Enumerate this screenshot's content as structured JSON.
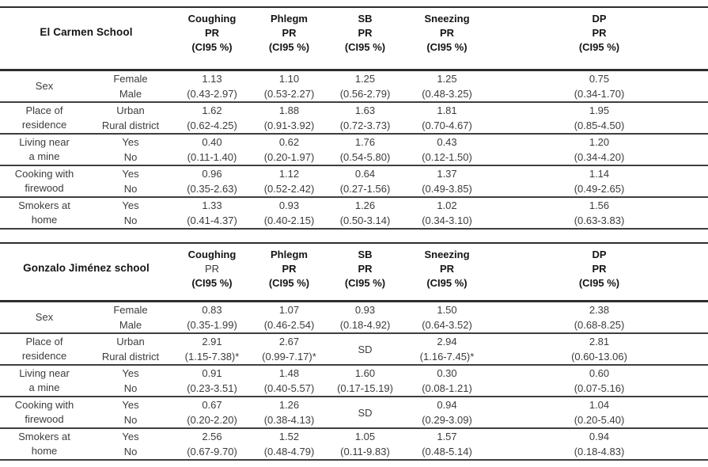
{
  "colors": {
    "background": "#ffffff",
    "rule_line": "#3f3f3f",
    "strong_rule_line": "#2e2e2e",
    "body_text": "#3c3c3c",
    "heading_text": "#151515"
  },
  "tables": [
    {
      "school": "El Carmen School",
      "columns": [
        {
          "symptom": "Coughing",
          "pr": "PR",
          "ci": "(CI95 %)",
          "pr_bold": true
        },
        {
          "symptom": "Phlegm",
          "pr": "PR",
          "ci": "(CI95 %)",
          "pr_bold": true
        },
        {
          "symptom": "SB",
          "pr": "PR",
          "ci": "(CI95 %)",
          "pr_bold": true
        },
        {
          "symptom": "Sneezing",
          "pr": "PR",
          "ci": "(CI95 %)",
          "pr_bold": true
        },
        {
          "symptom": "DP",
          "pr": "PR",
          "ci": "(CI95 %)",
          "pr_bold": true
        }
      ],
      "rows": [
        {
          "attribute": [
            "Sex"
          ],
          "categories": [
            "Female",
            "Male"
          ],
          "cells": [
            [
              "1.13",
              "(0.43-2.97)"
            ],
            [
              "1.10",
              "(0.53-2.27)"
            ],
            [
              "1.25",
              "(0.56-2.79)"
            ],
            [
              "1.25",
              "(0.48-3.25)"
            ],
            [
              "0.75",
              "(0.34-1.70)"
            ]
          ]
        },
        {
          "attribute": [
            "Place of",
            "residence"
          ],
          "categories": [
            "Urban",
            "Rural district"
          ],
          "cells": [
            [
              "1.62",
              "(0.62-4.25)"
            ],
            [
              "1.88",
              "(0.91-3.92)"
            ],
            [
              "1.63",
              "(0.72-3.73)"
            ],
            [
              "1.81",
              "(0.70-4.67)"
            ],
            [
              "1.95",
              "(0.85-4.50)"
            ]
          ]
        },
        {
          "attribute": [
            "Living near",
            "a mine"
          ],
          "categories": [
            "Yes",
            "No"
          ],
          "cells": [
            [
              "0.40",
              "(0.11-1.40)"
            ],
            [
              "0.62",
              "(0.20-1.97)"
            ],
            [
              "1.76",
              "(0.54-5.80)"
            ],
            [
              "0.43",
              "(0.12-1.50)"
            ],
            [
              "1.20",
              "(0.34-4.20)"
            ]
          ]
        },
        {
          "attribute": [
            "Cooking with",
            "firewood"
          ],
          "categories": [
            "Yes",
            "No"
          ],
          "cells": [
            [
              "0.96",
              "(0.35-2.63)"
            ],
            [
              "1.12",
              "(0.52-2.42)"
            ],
            [
              "0.64",
              "(0.27-1.56)"
            ],
            [
              "1.37",
              "(0.49-3.85)"
            ],
            [
              "1.14",
              "(0.49-2.65)"
            ]
          ]
        },
        {
          "attribute": [
            "Smokers at",
            "home"
          ],
          "categories": [
            "Yes",
            "No"
          ],
          "cells": [
            [
              "1.33",
              "(0.41-4.37)"
            ],
            [
              "0.93",
              "(0.40-2.15)"
            ],
            [
              "1.26",
              "(0.50-3.14)"
            ],
            [
              "1.02",
              "(0.34-3.10)"
            ],
            [
              "1.56",
              "(0.63-3.83)"
            ]
          ]
        }
      ]
    },
    {
      "school": "Gonzalo Jiménez school",
      "columns": [
        {
          "symptom": "Coughing",
          "pr": "PR",
          "ci": "(CI95 %)",
          "pr_bold": false
        },
        {
          "symptom": "Phlegm",
          "pr": "PR",
          "ci": "(CI95 %)",
          "pr_bold": true
        },
        {
          "symptom": "SB",
          "pr": "PR",
          "ci": "(CI95 %)",
          "pr_bold": true
        },
        {
          "symptom": "Sneezing",
          "pr": "PR",
          "ci": "(CI95 %)",
          "pr_bold": true
        },
        {
          "symptom": "DP",
          "pr": "PR",
          "ci": "(CI95 %)",
          "pr_bold": true
        }
      ],
      "rows": [
        {
          "attribute": [
            "Sex"
          ],
          "categories": [
            "Female",
            "Male"
          ],
          "cells": [
            [
              "0.83",
              "(0.35-1.99)"
            ],
            [
              "1.07",
              "(0.46-2.54)"
            ],
            [
              "0.93",
              "(0.18-4.92)"
            ],
            [
              "1.50",
              "(0.64-3.52)"
            ],
            [
              "2.38",
              "(0.68-8.25)"
            ]
          ]
        },
        {
          "attribute": [
            "Place of",
            "residence"
          ],
          "categories": [
            "Urban",
            "Rural district"
          ],
          "cells": [
            [
              "2.91",
              "(1.15-7.38)*"
            ],
            [
              "2.67",
              "(0.99-7.17)*"
            ],
            [
              "SD"
            ],
            [
              "2.94",
              "(1.16-7.45)*"
            ],
            [
              "2.81",
              "(0.60-13.06)"
            ]
          ]
        },
        {
          "attribute": [
            "Living near",
            "a mine"
          ],
          "categories": [
            "Yes",
            "No"
          ],
          "cells": [
            [
              "0.91",
              "(0.23-3.51)"
            ],
            [
              "1.48",
              "(0.40-5.57)"
            ],
            [
              "1.60",
              "(0.17-15.19)"
            ],
            [
              "0.30",
              "(0.08-1.21)"
            ],
            [
              "0.60",
              "(0.07-5.16)"
            ]
          ]
        },
        {
          "attribute": [
            "Cooking with",
            "firewood"
          ],
          "categories": [
            "Yes",
            "No"
          ],
          "cells": [
            [
              "0.67",
              "(0.20-2.20)"
            ],
            [
              "1.26",
              "(0.38-4.13)"
            ],
            [
              "SD"
            ],
            [
              "0.94",
              "(0.29-3.09)"
            ],
            [
              "1.04",
              "(0.20-5.40)"
            ]
          ]
        },
        {
          "attribute": [
            "Smokers at",
            "home"
          ],
          "categories": [
            "Yes",
            "No"
          ],
          "cells": [
            [
              "2.56",
              "(0.67-9.70)"
            ],
            [
              "1.52",
              "(0.48-4.79)"
            ],
            [
              "1.05",
              "(0.11-9.83)"
            ],
            [
              "1.57",
              "(0.48-5.14)"
            ],
            [
              "0.94",
              "(0.18-4.83)"
            ]
          ]
        }
      ]
    }
  ]
}
